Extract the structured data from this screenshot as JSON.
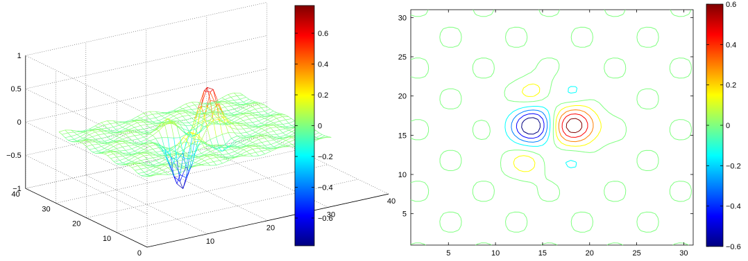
{
  "chart_data": [
    {
      "type": "surface",
      "title": "",
      "xlabel": "",
      "ylabel": "",
      "zlabel": "",
      "xlim": [
        0,
        40
      ],
      "ylim": [
        0,
        40
      ],
      "zlim": [
        -1,
        1
      ],
      "x_ticks": [
        0,
        10,
        20,
        30,
        40
      ],
      "y_ticks": [
        0,
        10,
        20,
        30,
        40
      ],
      "z_ticks": [
        -1,
        -0.5,
        0,
        0.5,
        1
      ],
      "x_tick_labels": [
        "",
        "10",
        "20",
        "30",
        "40"
      ],
      "y_tick_labels": [
        "0",
        "10",
        "20",
        "30",
        "40"
      ],
      "z_tick_labels": [
        "−1",
        "−0.5",
        "0",
        "0.5",
        "1"
      ],
      "grid": true,
      "colormap": "jet",
      "surface": {
        "grid_size": 31,
        "peaks": [
          {
            "x": 18.3,
            "y": 16.2,
            "z": 0.76
          },
          {
            "x": 14.0,
            "y": 16.2,
            "z": -0.78
          }
        ],
        "secondary_lobes": [
          {
            "x": 14.0,
            "y": 20.5,
            "z": 0.22
          },
          {
            "x": 18.3,
            "y": 20.5,
            "z": -0.2
          },
          {
            "x": 13.3,
            "y": 11.5,
            "z": 0.22
          },
          {
            "x": 18.3,
            "y": 11.5,
            "z": -0.2
          }
        ]
      },
      "colorbar": {
        "range": [
          -0.78,
          0.78
        ],
        "ticks": [
          0.6,
          0.4,
          0.2,
          0,
          -0.2,
          -0.4,
          -0.6
        ],
        "tick_labels": [
          "0.6",
          "0.4",
          "0.2",
          "0",
          "−0.2",
          "−0.4",
          "−0.6"
        ]
      }
    },
    {
      "type": "contour",
      "title": "",
      "xlabel": "",
      "ylabel": "",
      "xlim": [
        1,
        31
      ],
      "ylim": [
        1,
        31
      ],
      "x_ticks": [
        5,
        10,
        15,
        20,
        25,
        30
      ],
      "y_ticks": [
        5,
        10,
        15,
        20,
        25,
        30
      ],
      "x_tick_labels": [
        "5",
        "10",
        "15",
        "20",
        "25",
        "30"
      ],
      "y_tick_labels": [
        "5",
        "10",
        "15",
        "20",
        "25",
        "30"
      ],
      "grid": false,
      "colormap": "jet",
      "colorbar": {
        "range": [
          -0.6,
          0.6
        ],
        "ticks": [
          0.6,
          0.4,
          0.2,
          0,
          -0.2,
          -0.4,
          -0.6
        ],
        "tick_labels": [
          "0.6",
          "0.4",
          "0.2",
          "0",
          "−0.2",
          "−0.4",
          "−0.6"
        ]
      }
    }
  ]
}
